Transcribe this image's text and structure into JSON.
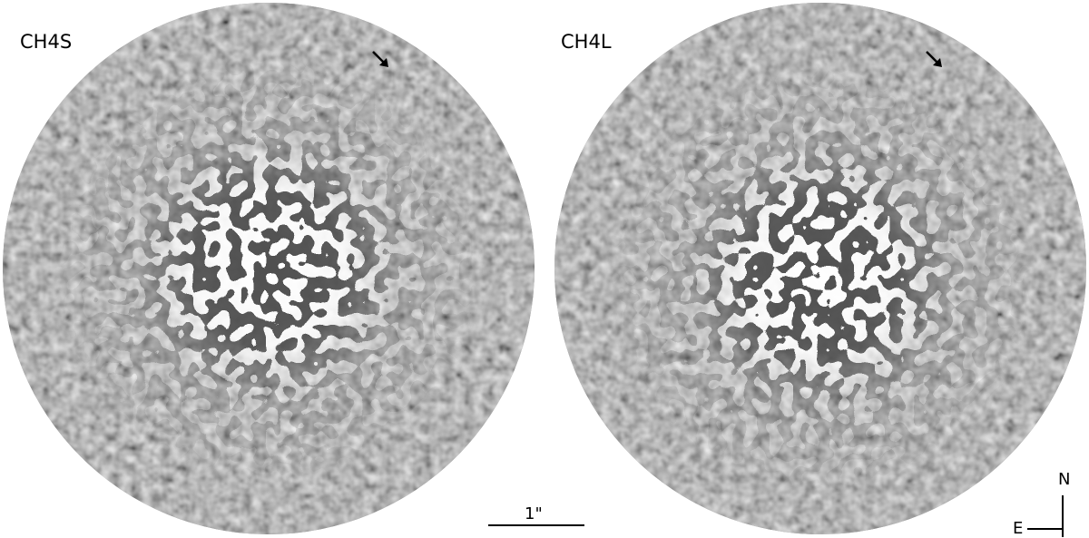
{
  "panels": [
    {
      "label": "CH4S"
    },
    {
      "label": "CH4L"
    }
  ],
  "scalebar": {
    "label": "1\""
  },
  "compass": {
    "north": "N",
    "east": "E"
  }
}
